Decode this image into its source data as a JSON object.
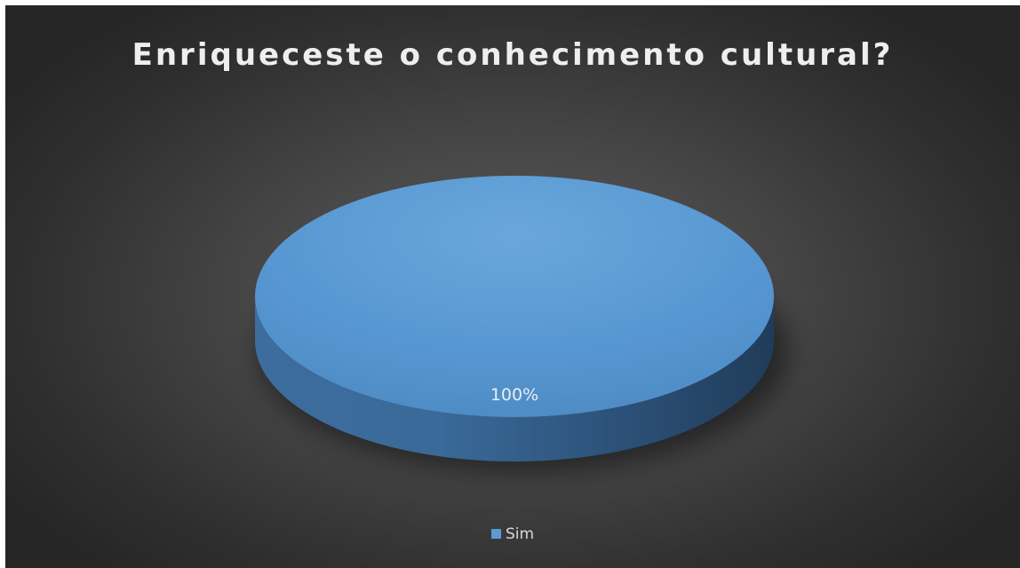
{
  "chart_data": {
    "type": "pie",
    "title": "Enriqueceste o conhecimento cultural?",
    "categories": [
      "Sim"
    ],
    "values": [
      100
    ],
    "data_labels": [
      "100%"
    ],
    "colors": [
      "#5b9bd5"
    ],
    "legend": {
      "position": "bottom",
      "entries": [
        "Sim"
      ]
    },
    "three_d": true
  }
}
